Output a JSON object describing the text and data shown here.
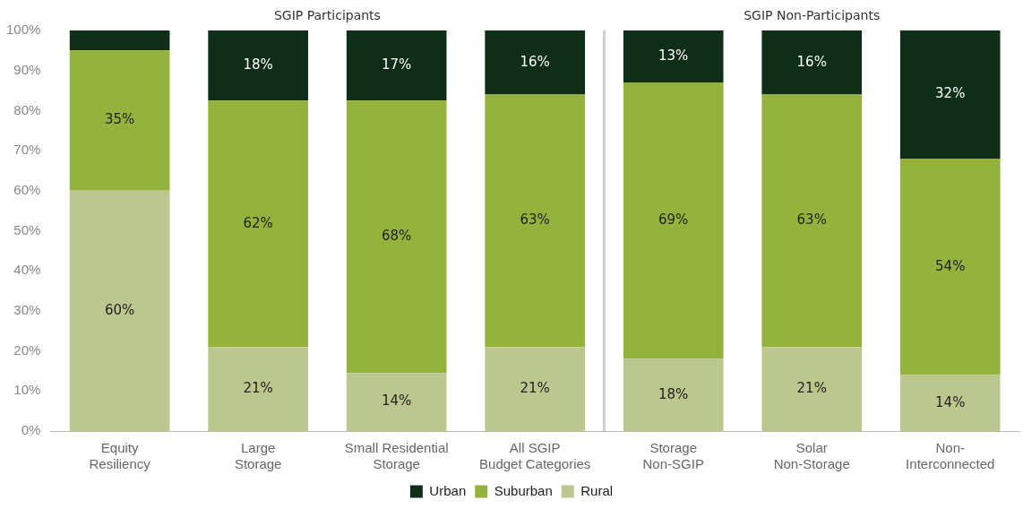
{
  "chart_data": {
    "type": "bar",
    "stacked": true,
    "categories": [
      "Equity\nResiliency",
      "Large\nStorage",
      "Small Residential\nStorage",
      "All SGIP\nBudget Categories",
      "Storage\nNon-SGIP",
      "Solar\nNon-Storage",
      "Non-\nInterconnected"
    ],
    "series": [
      {
        "name": "Rural",
        "color": "#bcc78e",
        "values": [
          60,
          21,
          14.5,
          21,
          18,
          21,
          14
        ],
        "value_labels": [
          "60%",
          "21%",
          "14%",
          "21%",
          "18%",
          "21%",
          "14%"
        ]
      },
      {
        "name": "Suburban",
        "color": "#95b33c",
        "values": [
          35,
          61.5,
          68,
          63,
          69,
          63,
          54
        ],
        "value_labels": [
          "35%",
          "62%",
          "68%",
          "63%",
          "69%",
          "63%",
          "54%"
        ]
      },
      {
        "name": "Urban",
        "color": "#0f2e18",
        "values": [
          5,
          17.5,
          17.5,
          16,
          13,
          16,
          32
        ],
        "value_labels": [
          null,
          "18%",
          "17%",
          "16%",
          "13%",
          "16%",
          "32%"
        ]
      }
    ],
    "ylim": [
      0,
      100
    ],
    "yticks": [
      {
        "value": 0,
        "label": "0%"
      },
      {
        "value": 10,
        "label": "10%"
      },
      {
        "value": 20,
        "label": "20%"
      },
      {
        "value": 30,
        "label": "30%"
      },
      {
        "value": 40,
        "label": "40%"
      },
      {
        "value": 50,
        "label": "50%"
      },
      {
        "value": 60,
        "label": "60%"
      },
      {
        "value": 70,
        "label": "70%"
      },
      {
        "value": 80,
        "label": "80%"
      },
      {
        "value": 90,
        "label": "90%"
      },
      {
        "value": 100,
        "label": "100%"
      }
    ],
    "legend": "bottom",
    "annotations": [
      "SGIP Participants",
      "SGIP Non-Participants"
    ]
  }
}
